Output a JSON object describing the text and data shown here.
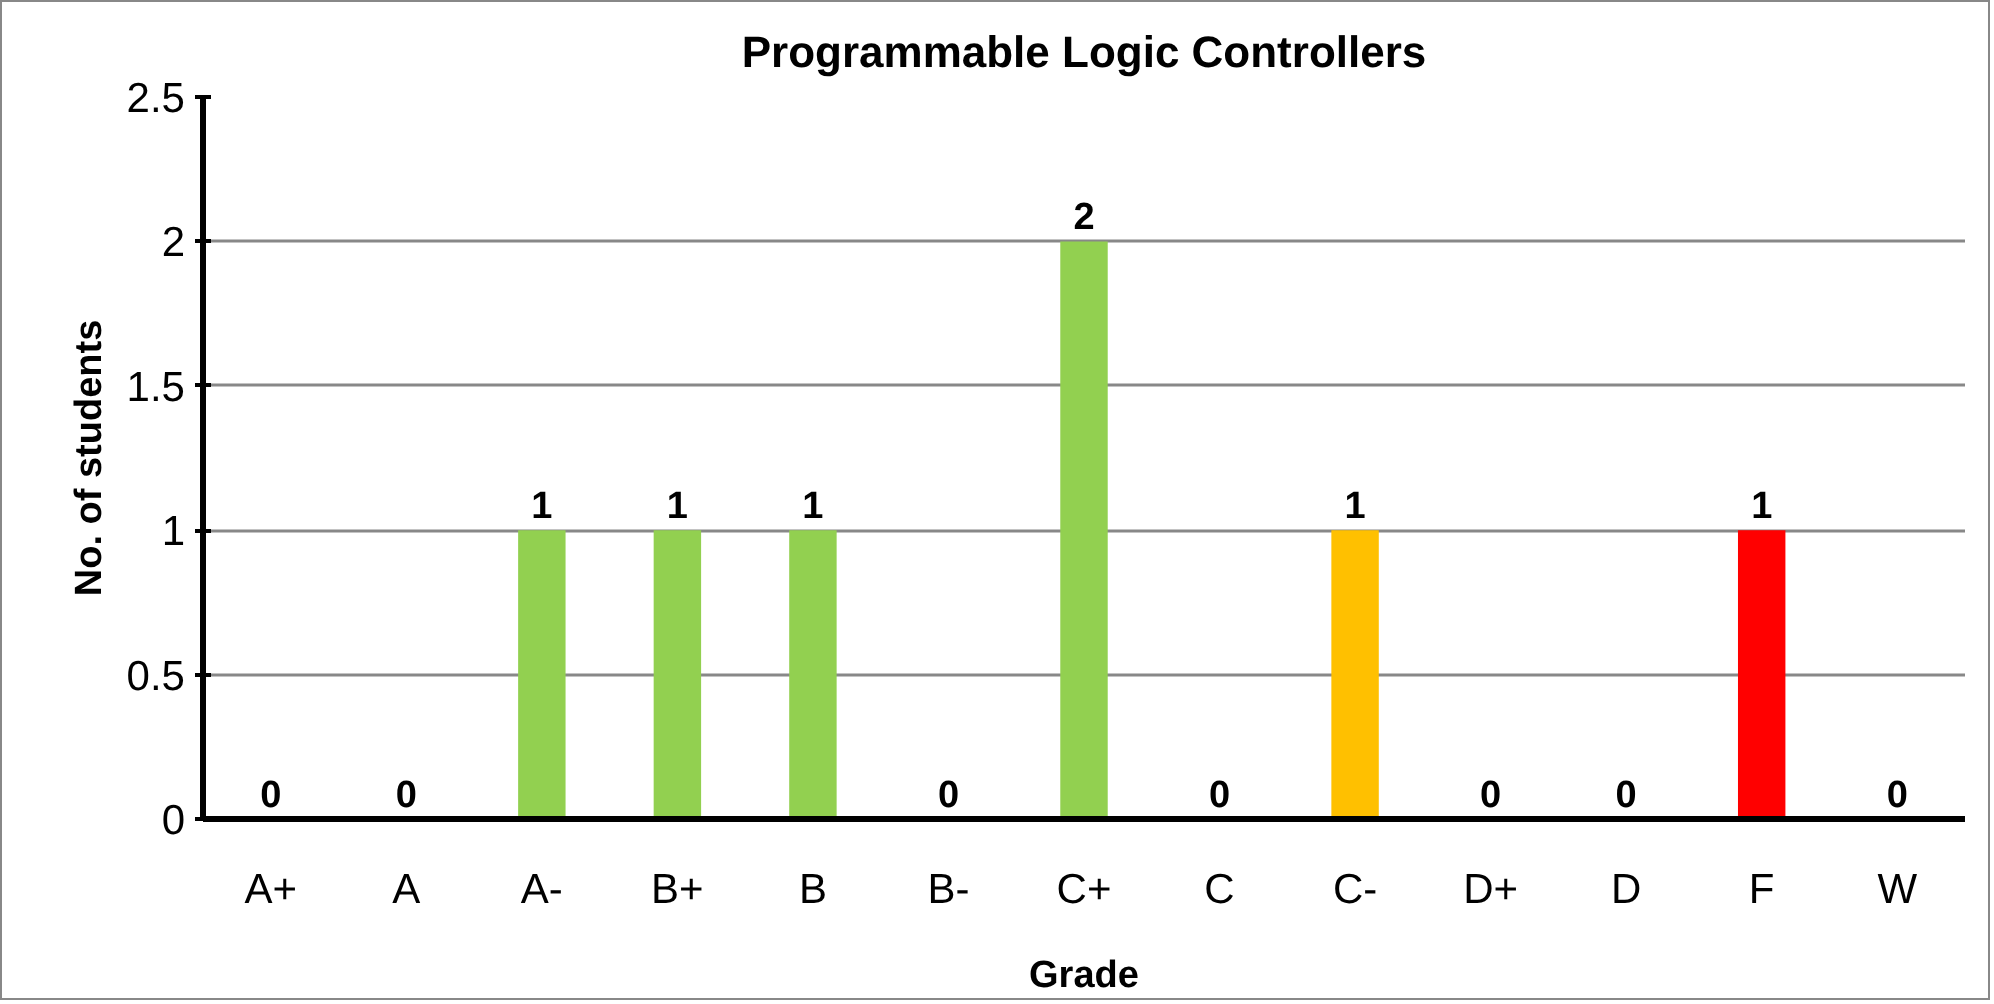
{
  "chart_data": {
    "type": "bar",
    "title": "Programmable Logic Controllers",
    "xlabel": "Grade",
    "ylabel": "No. of students",
    "categories": [
      "A+",
      "A",
      "A-",
      "B+",
      "B",
      "B-",
      "C+",
      "C",
      "C-",
      "D+",
      "D",
      "F",
      "W"
    ],
    "values": [
      0,
      0,
      1,
      1,
      1,
      0,
      2,
      0,
      1,
      0,
      0,
      1,
      0
    ],
    "colors": [
      "#92d050",
      "#92d050",
      "#92d050",
      "#92d050",
      "#92d050",
      "#92d050",
      "#92d050",
      "#92d050",
      "#ffc000",
      "#92d050",
      "#92d050",
      "#ff0000",
      "#92d050"
    ],
    "ylim": [
      0,
      2.5
    ],
    "yticks": [
      0,
      0.5,
      1,
      1.5,
      2,
      2.5
    ],
    "grid": "y",
    "data_labels": true
  }
}
